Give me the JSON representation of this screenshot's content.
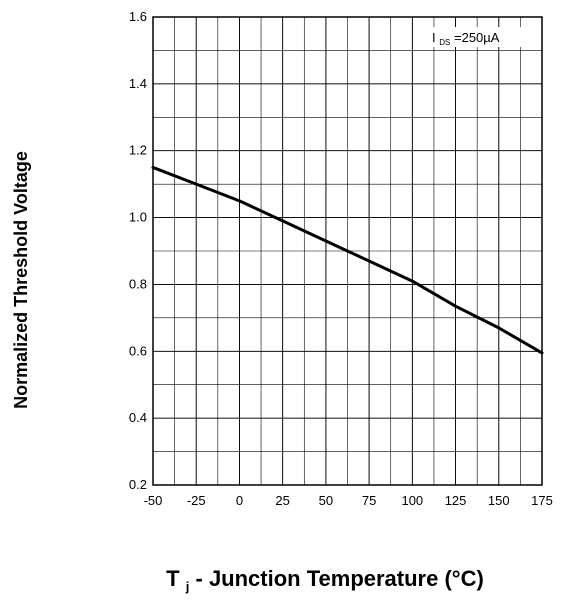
{
  "chart_data": {
    "type": "line",
    "title": "",
    "xlabel_prefix": "T",
    "xlabel_subscript": "j",
    "xlabel_suffix": " - Junction Temperature (°C)",
    "ylabel": "Normalized Threshold Voltage",
    "xlim": [
      -50,
      175
    ],
    "ylim": [
      0.2,
      1.6
    ],
    "x_ticks": [
      -50,
      -25,
      0,
      25,
      50,
      75,
      100,
      125,
      150,
      175
    ],
    "x_tick_labels": [
      "-50",
      "-25",
      "0",
      "25",
      "50",
      "75",
      "100",
      "125",
      "150",
      "175"
    ],
    "y_ticks": [
      0.2,
      0.4,
      0.6,
      0.8,
      1.0,
      1.2,
      1.4,
      1.6
    ],
    "y_tick_labels": [
      "0.2",
      "0.4",
      "0.6",
      "0.8",
      "1.0",
      "1.2",
      "1.4",
      "1.6"
    ],
    "x_minor_step": 12.5,
    "y_minor_step": 0.1,
    "grid": true,
    "annotation": {
      "main": "I",
      "subscript": "DS",
      "rest": " =250µA",
      "position": "top-right"
    },
    "line_color": "#000000",
    "series": [
      {
        "x": [
          -50,
          -25,
          0,
          25,
          50,
          75,
          100,
          125,
          150,
          175
        ],
        "y": [
          1.15,
          1.1,
          1.05,
          0.99,
          0.93,
          0.87,
          0.81,
          0.735,
          0.67,
          0.595
        ]
      }
    ]
  }
}
